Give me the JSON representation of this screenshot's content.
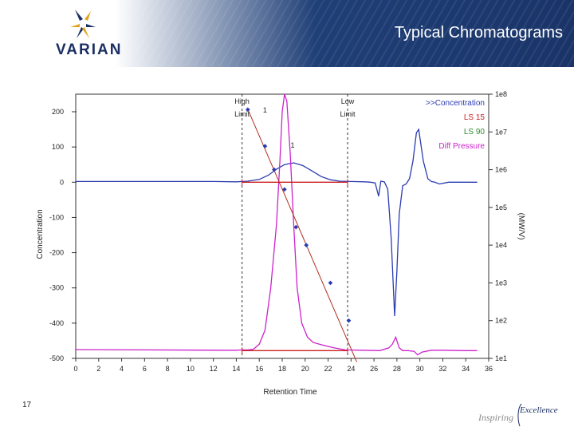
{
  "header": {
    "title": "Typical Chromatograms",
    "logo_text": "VARIAN",
    "logo_color": "#1b2f63",
    "band_color": "#1f3f77"
  },
  "footer": {
    "page_number": "17",
    "tagline_word1": "Inspiring",
    "tagline_word2": "Excellence"
  },
  "chart_data": {
    "type": "line",
    "xlabel": "Retention Time",
    "ylabel_left": "Concentration",
    "ylabel_right": "(MW/V)",
    "xlim": [
      0,
      36
    ],
    "x_ticks": [
      0,
      2,
      4,
      6,
      8,
      10,
      12,
      14,
      16,
      18,
      20,
      22,
      24,
      26,
      28,
      30,
      32,
      34,
      36
    ],
    "ylim_left": [
      -500,
      200
    ],
    "y_ticks_left": [
      200,
      100,
      0,
      -100,
      -200,
      -300,
      -400,
      -500
    ],
    "y_tick_labels_left": [
      "200",
      "100",
      "0",
      "-100",
      "-200",
      "-300",
      "-400",
      "-500"
    ],
    "right_axis_log": true,
    "ylim_right": [
      10,
      100000000
    ],
    "y_ticks_right": [
      "1e8",
      "1e7",
      "1e6",
      "1e5",
      "1e4",
      "1e3",
      "1e2",
      "1e1"
    ],
    "grid": false,
    "legend_position": "top-right",
    "legend": [
      {
        "label": ">>Concentration",
        "color": "#2a3bb0"
      },
      {
        "label": "LS 15",
        "color": "#cc2222"
      },
      {
        "label": "LS 90",
        "color": "#2e8b2e"
      },
      {
        "label": "Diff Pressure",
        "color": "#cc22cc"
      }
    ],
    "annotations": [
      {
        "text": "High",
        "x": 14.5
      },
      {
        "text": "Limit",
        "x": 14.5
      },
      {
        "text": "Low",
        "x": 23.7
      },
      {
        "text": "Limit",
        "x": 23.7
      },
      {
        "text": "1",
        "x": 16.5,
        "y": 198
      },
      {
        "text": "1",
        "x": 18.9,
        "y": 98
      }
    ],
    "limits": [
      14.5,
      23.7
    ],
    "series": [
      {
        "name": ">>Concentration",
        "color": "#2a3bb0",
        "axis": "left",
        "x": [
          0,
          12,
          14,
          15,
          16,
          16.8,
          17.5,
          18.2,
          19,
          19.8,
          20.6,
          21.4,
          22.2,
          23,
          24,
          25.2,
          25.7,
          26.1,
          26.4,
          26.6,
          26.9,
          27.2,
          27.5,
          27.8,
          28,
          28.2,
          28.5,
          28.8,
          29.1,
          29.4,
          29.7,
          29.9,
          30.3,
          30.7,
          31,
          31.3,
          31.7,
          32.5,
          35
        ],
        "y": [
          2,
          2,
          1,
          3,
          8,
          20,
          37,
          50,
          55,
          47,
          32,
          16,
          7,
          3,
          2,
          1,
          0,
          -2,
          -40,
          3,
          1,
          -20,
          -160,
          -380,
          -250,
          -90,
          -10,
          -5,
          10,
          60,
          140,
          150,
          60,
          10,
          2,
          0,
          -5,
          0,
          0
        ]
      },
      {
        "name": "Diff Pressure",
        "color": "#cc22cc",
        "axis": "left",
        "x": [
          0,
          13,
          14,
          14.5,
          15,
          15.5,
          16,
          16.5,
          17,
          17.5,
          17.8,
          18,
          18.2,
          18.4,
          18.7,
          19,
          19.3,
          19.7,
          20.2,
          20.7,
          21.5,
          22.5,
          23.5,
          25,
          26.5,
          27.3,
          27.6,
          27.9,
          28.2,
          28.5,
          29,
          29.5,
          29.8,
          30.2,
          31,
          32,
          34,
          35
        ],
        "y": [
          -475,
          -477,
          -477,
          -476,
          -476,
          -474,
          -460,
          -420,
          -300,
          -120,
          60,
          200,
          250,
          230,
          80,
          -120,
          -300,
          -400,
          -440,
          -455,
          -462,
          -470,
          -476,
          -477,
          -478,
          -470,
          -460,
          -440,
          -470,
          -478,
          -478,
          -480,
          -490,
          -482,
          -477,
          -477,
          -478,
          -478
        ]
      },
      {
        "name": "LS 15",
        "color": "#cc2222",
        "axis": "left",
        "x": [
          14.5,
          23.7
        ],
        "y": [
          0,
          0
        ]
      },
      {
        "name": "LS 15",
        "color": "#cc2222",
        "axis": "left",
        "x": [
          14.5,
          23.7
        ],
        "y": [
          -478,
          -478
        ]
      },
      {
        "name": "Calibration fit",
        "color": "#b03020",
        "axis": "right",
        "x": [
          15,
          24.5
        ],
        "y": [
          40000000,
          8
        ]
      }
    ],
    "calibration_points": {
      "color": "#2a3bb0",
      "x": [
        15.0,
        16.5,
        17.3,
        18.2,
        19.2,
        20.1,
        22.2,
        23.8
      ],
      "y": [
        39000000,
        4200000,
        1000000,
        300000,
        30000,
        10000,
        1000,
        100
      ]
    }
  }
}
